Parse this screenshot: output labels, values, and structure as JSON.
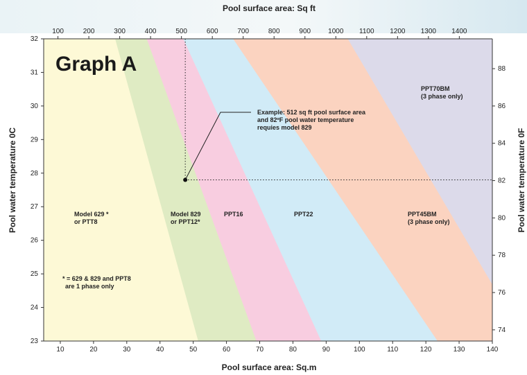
{
  "chart_data": {
    "type": "area",
    "title": "Graph A",
    "xlabel_bottom": "Pool surface area: Sq.m",
    "xlabel_top": "Pool surface area: Sq ft",
    "ylabel_left": "Pool water temperature 0C",
    "ylabel_right": "Pool water temperature 0F",
    "xlim": [
      5,
      140
    ],
    "ylim": [
      23,
      32
    ],
    "x_ticks": [
      10,
      20,
      30,
      40,
      50,
      60,
      70,
      80,
      90,
      100,
      110,
      120,
      130,
      140
    ],
    "y_ticks": [
      23,
      24,
      25,
      26,
      27,
      28,
      29,
      30,
      31,
      32
    ],
    "x_top_ticks": [
      100,
      200,
      300,
      400,
      500,
      600,
      700,
      800,
      900,
      1000,
      1100,
      1200,
      1300,
      1400
    ],
    "y_right_ticks": [
      74,
      76,
      78,
      80,
      82,
      84,
      86,
      88
    ],
    "zones": [
      {
        "name": "Model 629 *\nor PTT8",
        "color": "#fdf9d6",
        "boundary": {
          "top_x": 26.5,
          "bottom_x": 51.5
        }
      },
      {
        "name": "Model 829\nor PPT12*",
        "color": "#dfebc3",
        "boundary": {
          "top_x": 36.0,
          "bottom_x": 69.0
        }
      },
      {
        "name": "PPT16",
        "color": "#f8cde0",
        "boundary": {
          "top_x": 47.0,
          "bottom_x": 88.5
        }
      },
      {
        "name": "PPT22",
        "color": "#d1ebf7",
        "boundary": {
          "top_x": 62.0,
          "bottom_x": 123.5
        }
      },
      {
        "name": "PPT45BM\n(3 phase only)",
        "color": "#fbd3c0",
        "boundary": {
          "top_x": 96.5,
          "bottom_x": 140
        }
      },
      {
        "name": "PPT70BM\n(3 phase only)",
        "color": "#dcdaea",
        "boundary": null
      }
    ],
    "example_point": {
      "x": 47.6,
      "y": 27.8,
      "x_sqft": 512,
      "y_f": 82
    },
    "annotations": {
      "example": "Example: 512 sq ft pool surface area\nand 82ºF pool water temperature\nrequies model 829",
      "footnote": "* = 629 & 829 and PPT8\nare 1 phase only"
    },
    "grid": false
  }
}
